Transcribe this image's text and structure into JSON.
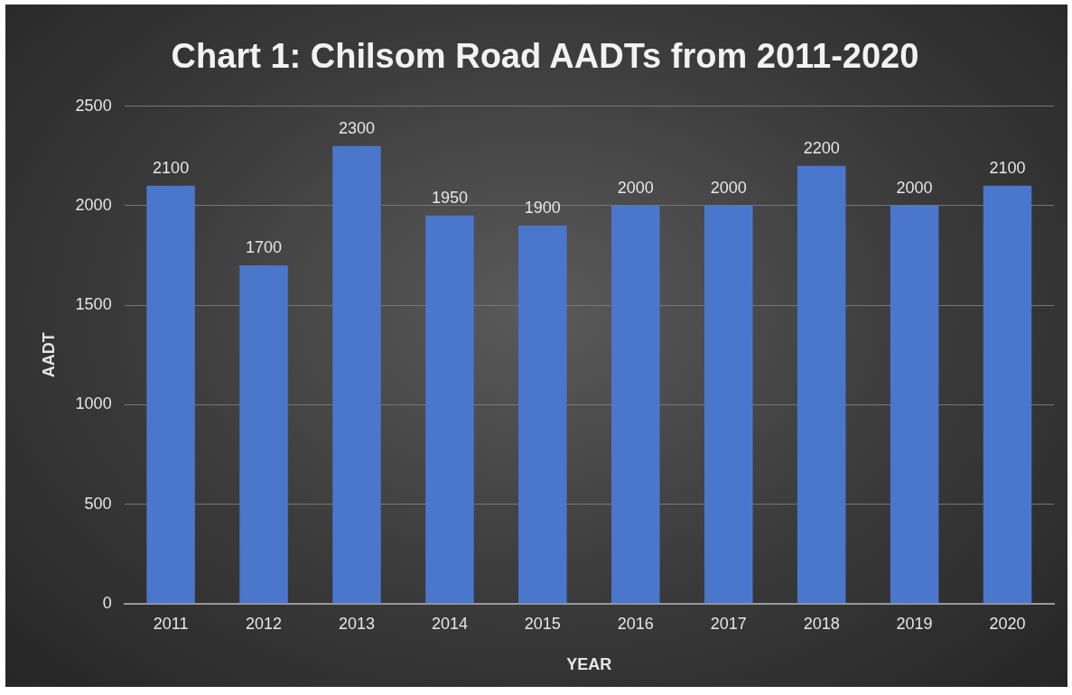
{
  "chart_data": {
    "type": "bar",
    "title": "Chart 1: Chilsom Road AADTs from 2011-2020",
    "xlabel": "YEAR",
    "ylabel": "AADT",
    "categories": [
      "2011",
      "2012",
      "2013",
      "2014",
      "2015",
      "2016",
      "2017",
      "2018",
      "2019",
      "2020"
    ],
    "values": [
      2100,
      1700,
      2300,
      1950,
      1900,
      2000,
      2000,
      2200,
      2000,
      2100
    ],
    "color": "#4a77cc",
    "ylim": [
      0,
      2500
    ],
    "yticks": [
      0,
      500,
      1000,
      1500,
      2000,
      2500
    ],
    "grid": "y",
    "data_labels": true
  }
}
